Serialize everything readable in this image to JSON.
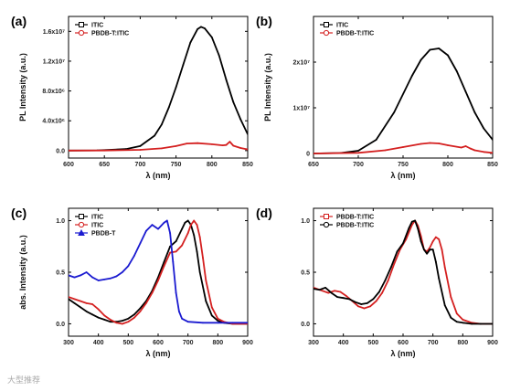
{
  "watermark": "大型推荐",
  "chart_data": [
    {
      "panel_label": "(a)",
      "type": "line",
      "xlabel": "λ (nm)",
      "ylabel": "PL Intensity (a.u.)",
      "xlim": [
        600,
        850
      ],
      "ylim": [
        -1000000,
        18000000
      ],
      "xticks": [
        600,
        650,
        700,
        750,
        800,
        850
      ],
      "yticks": [
        0,
        4000000,
        8000000,
        12000000,
        16000000
      ],
      "yticklabels": [
        "0.0",
        "4.0x10⁶",
        "8.0x10⁶",
        "1.2x10⁷",
        "1.6x10⁷"
      ],
      "legend": "top-left",
      "series": [
        {
          "name": "ITIC",
          "color": "#000000",
          "x": [
            600,
            640,
            680,
            700,
            720,
            730,
            740,
            750,
            760,
            770,
            780,
            785,
            790,
            800,
            810,
            820,
            830,
            840,
            850
          ],
          "y": [
            0,
            30000,
            200000,
            600000,
            2000000,
            3500000,
            5800000,
            8500000,
            11500000,
            14500000,
            16300000,
            16600000,
            16400000,
            15200000,
            12800000,
            9500000,
            6500000,
            4200000,
            2200000
          ]
        },
        {
          "name": "PBDB-T:ITIC",
          "color": "#d42020",
          "x": [
            600,
            650,
            700,
            730,
            750,
            765,
            780,
            800,
            815,
            820,
            825,
            830,
            840,
            850
          ],
          "y": [
            0,
            20000,
            100000,
            300000,
            600000,
            950000,
            1000000,
            850000,
            700000,
            750000,
            1200000,
            650000,
            350000,
            150000
          ]
        }
      ]
    },
    {
      "panel_label": "(b)",
      "type": "line",
      "xlabel": "λ (nm)",
      "ylabel": "PL Intensity (a.u.)",
      "xlim": [
        650,
        850
      ],
      "ylim": [
        -1000000,
        30000000
      ],
      "xticks": [
        650,
        700,
        750,
        800,
        850
      ],
      "yticks": [
        0,
        10000000,
        20000000
      ],
      "yticklabels": [
        "0",
        "1x10⁷",
        "2x10⁷"
      ],
      "legend": "top-left",
      "series": [
        {
          "name": "ITIC",
          "color": "#000000",
          "x": [
            650,
            680,
            700,
            720,
            740,
            760,
            770,
            780,
            790,
            800,
            810,
            820,
            830,
            840,
            850
          ],
          "y": [
            0,
            100000,
            600000,
            3000000,
            9000000,
            17000000,
            20500000,
            22700000,
            23000000,
            21500000,
            18000000,
            13500000,
            9000000,
            5500000,
            3000000
          ]
        },
        {
          "name": "PBDB-T:ITIC",
          "color": "#d42020",
          "x": [
            650,
            700,
            730,
            750,
            770,
            780,
            790,
            800,
            815,
            820,
            825,
            830,
            840,
            850
          ],
          "y": [
            0,
            150000,
            700000,
            1400000,
            2100000,
            2300000,
            2200000,
            1800000,
            1300000,
            1600000,
            1100000,
            700000,
            350000,
            150000
          ]
        }
      ]
    },
    {
      "panel_label": "(c)",
      "type": "line",
      "xlabel": "λ (nm)",
      "ylabel": "abs. Intensity (a.u.)",
      "xlim": [
        300,
        900
      ],
      "ylim": [
        -0.12,
        1.12
      ],
      "xticks": [
        300,
        400,
        500,
        600,
        700,
        800,
        900
      ],
      "yticks": [
        0.0,
        0.5,
        1.0
      ],
      "yticklabels": [
        "0.0",
        "0.5",
        "1.0"
      ],
      "legend": "top-left",
      "series": [
        {
          "name": "ITIC",
          "color": "#000000",
          "x": [
            300,
            320,
            340,
            360,
            380,
            400,
            420,
            440,
            460,
            480,
            500,
            520,
            540,
            560,
            580,
            600,
            620,
            640,
            660,
            680,
            690,
            700,
            710,
            720,
            730,
            740,
            760,
            780,
            800,
            820,
            850,
            900
          ],
          "y": [
            0.24,
            0.2,
            0.16,
            0.12,
            0.09,
            0.06,
            0.04,
            0.02,
            0.02,
            0.03,
            0.05,
            0.09,
            0.15,
            0.22,
            0.32,
            0.45,
            0.6,
            0.75,
            0.8,
            0.92,
            0.98,
            1.0,
            0.96,
            0.86,
            0.7,
            0.5,
            0.22,
            0.08,
            0.03,
            0.01,
            0.0,
            0.0
          ]
        },
        {
          "name": "ITIC",
          "color": "#d42020",
          "x": [
            300,
            320,
            340,
            360,
            380,
            400,
            420,
            440,
            460,
            480,
            500,
            520,
            540,
            560,
            580,
            600,
            620,
            640,
            660,
            680,
            700,
            710,
            720,
            730,
            740,
            750,
            760,
            780,
            800,
            820,
            850,
            900
          ],
          "y": [
            0.26,
            0.24,
            0.22,
            0.2,
            0.19,
            0.14,
            0.08,
            0.04,
            0.01,
            0.0,
            0.02,
            0.06,
            0.12,
            0.2,
            0.3,
            0.42,
            0.56,
            0.69,
            0.7,
            0.76,
            0.88,
            0.96,
            1.0,
            0.96,
            0.84,
            0.64,
            0.42,
            0.16,
            0.05,
            0.02,
            0.0,
            0.0
          ]
        },
        {
          "name": "PBDB-T",
          "color": "#1a1ad0",
          "x": [
            300,
            320,
            340,
            360,
            380,
            400,
            420,
            440,
            460,
            480,
            500,
            520,
            540,
            560,
            580,
            600,
            620,
            630,
            640,
            650,
            660,
            670,
            680,
            700,
            750,
            800,
            850,
            900
          ],
          "y": [
            0.47,
            0.45,
            0.47,
            0.5,
            0.45,
            0.42,
            0.43,
            0.44,
            0.46,
            0.5,
            0.56,
            0.66,
            0.78,
            0.9,
            0.96,
            0.92,
            0.98,
            1.0,
            0.88,
            0.6,
            0.3,
            0.12,
            0.05,
            0.02,
            0.01,
            0.01,
            0.01,
            0.01
          ]
        }
      ]
    },
    {
      "panel_label": "(d)",
      "type": "line",
      "xlabel": "λ (nm)",
      "ylabel": "",
      "xlim": [
        300,
        900
      ],
      "ylim": [
        -0.12,
        1.12
      ],
      "xticks": [
        300,
        400,
        500,
        600,
        700,
        800,
        900
      ],
      "yticks": [
        0.0,
        0.5,
        1.0
      ],
      "yticklabels": [
        "0.0",
        "0.5",
        "1.0"
      ],
      "legend": "top-left",
      "series": [
        {
          "name": "PBDB-T:ITIC",
          "color": "#d42020",
          "x": [
            300,
            330,
            350,
            370,
            390,
            410,
            430,
            450,
            470,
            490,
            510,
            530,
            550,
            570,
            590,
            610,
            630,
            640,
            650,
            660,
            670,
            680,
            690,
            700,
            710,
            720,
            730,
            740,
            760,
            780,
            800,
            830,
            860,
            900
          ],
          "y": [
            0.35,
            0.32,
            0.3,
            0.32,
            0.31,
            0.27,
            0.22,
            0.17,
            0.15,
            0.17,
            0.22,
            0.3,
            0.42,
            0.58,
            0.72,
            0.82,
            0.96,
            1.0,
            0.95,
            0.85,
            0.72,
            0.7,
            0.74,
            0.8,
            0.84,
            0.82,
            0.72,
            0.55,
            0.26,
            0.1,
            0.04,
            0.01,
            0.0,
            0.0
          ]
        },
        {
          "name": "PBDB-T:ITIC",
          "color": "#000000",
          "x": [
            300,
            320,
            340,
            360,
            380,
            400,
            420,
            440,
            460,
            480,
            500,
            520,
            540,
            560,
            580,
            600,
            620,
            630,
            640,
            650,
            660,
            670,
            680,
            690,
            700,
            710,
            720,
            740,
            760,
            780,
            800,
            830,
            860,
            900
          ],
          "y": [
            0.34,
            0.33,
            0.35,
            0.3,
            0.26,
            0.25,
            0.24,
            0.21,
            0.19,
            0.2,
            0.24,
            0.31,
            0.42,
            0.55,
            0.7,
            0.78,
            0.93,
            0.99,
            1.0,
            0.92,
            0.8,
            0.72,
            0.68,
            0.72,
            0.72,
            0.6,
            0.44,
            0.18,
            0.06,
            0.02,
            0.01,
            0.0,
            0.0,
            0.0
          ]
        }
      ]
    }
  ]
}
